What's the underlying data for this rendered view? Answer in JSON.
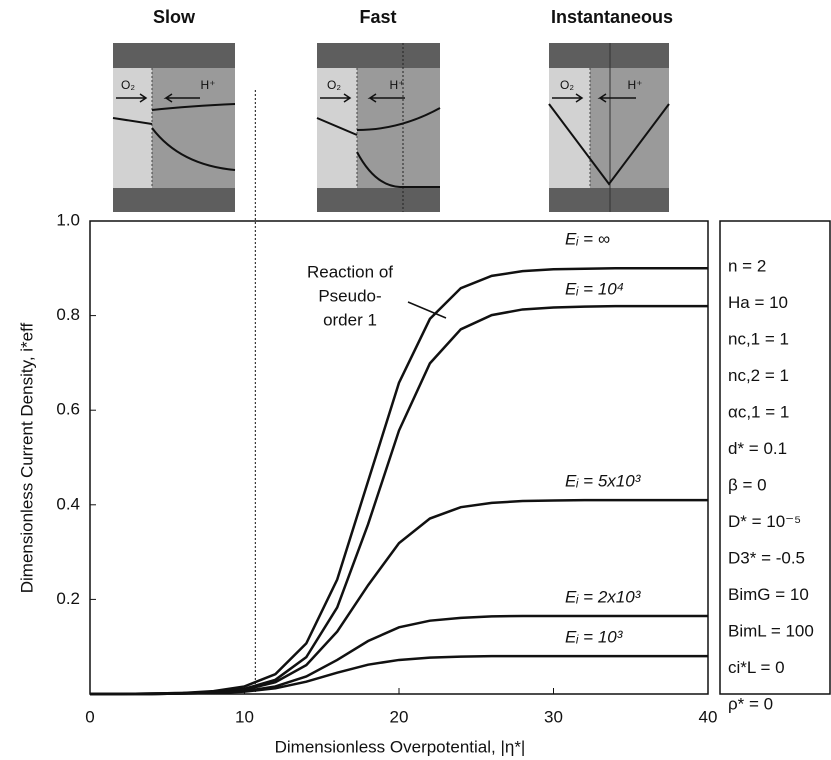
{
  "chart_data": {
    "type": "line",
    "x_label": "Dimensionless Overpotential, |η*|",
    "y_label": "Dimensionless Current Density, i*eff",
    "x": [
      0,
      2,
      4,
      6,
      8,
      10,
      12,
      14,
      16,
      18,
      20,
      22,
      24,
      26,
      28,
      30,
      32,
      34,
      36,
      38,
      40
    ],
    "series": [
      {
        "name": "Eᵢ = ∞",
        "color": "#111111",
        "values": [
          0,
          0,
          0.001,
          0.002,
          0.006,
          0.016,
          0.042,
          0.107,
          0.242,
          0.45,
          0.658,
          0.793,
          0.858,
          0.884,
          0.894,
          0.898,
          0.899,
          0.9,
          0.9,
          0.9,
          0.9
        ]
      },
      {
        "name": "Eᵢ = 10⁴",
        "color": "#111111",
        "values": [
          0,
          0,
          0.001,
          0.002,
          0.004,
          0.011,
          0.03,
          0.078,
          0.183,
          0.359,
          0.557,
          0.699,
          0.771,
          0.801,
          0.813,
          0.817,
          0.819,
          0.82,
          0.82,
          0.82,
          0.82
        ]
      },
      {
        "name": "Eᵢ = 5x10³",
        "color": "#111111",
        "values": [
          0,
          0,
          0,
          0.001,
          0.004,
          0.009,
          0.025,
          0.061,
          0.132,
          0.23,
          0.319,
          0.371,
          0.395,
          0.404,
          0.408,
          0.409,
          0.41,
          0.41,
          0.41,
          0.41,
          0.41
        ]
      },
      {
        "name": "Eᵢ = 2x10³",
        "color": "#111111",
        "values": [
          0,
          0,
          0,
          0.001,
          0.002,
          0.006,
          0.016,
          0.037,
          0.072,
          0.112,
          0.141,
          0.155,
          0.161,
          0.164,
          0.165,
          0.165,
          0.165,
          0.165,
          0.165,
          0.165,
          0.165
        ]
      },
      {
        "name": "Eᵢ = 10³",
        "color": "#111111",
        "values": [
          0,
          0,
          0,
          0.001,
          0.002,
          0.005,
          0.012,
          0.026,
          0.045,
          0.062,
          0.072,
          0.077,
          0.079,
          0.08,
          0.08,
          0.08,
          0.08,
          0.08,
          0.08,
          0.08,
          0.08
        ]
      }
    ],
    "xlim": [
      0,
      40
    ],
    "xticks": [
      0,
      10,
      20,
      30,
      40
    ],
    "ylim": [
      0,
      1.0
    ],
    "yticks": [
      0.2,
      0.4,
      0.6,
      0.8,
      {
        "value": 1.0,
        "label": "1.0"
      }
    ],
    "vline_x": 10.7,
    "annotation": [
      "Reaction of",
      "Pseudo-",
      "order 1"
    ],
    "parameters": [
      "n = 2",
      "Ha = 10",
      "nc,1 = 1",
      "nc,2 = 1",
      "αc,1 = 1",
      "d* = 0.1",
      "β = 0",
      "D* = 10⁻⁵",
      "D3* = -0.5",
      "BimG = 10",
      "BimL = 100",
      "ci*L = 0",
      "ρ* = 0"
    ]
  },
  "schematics": [
    {
      "title": "Slow",
      "labels": [
        "O₂",
        "H⁺"
      ]
    },
    {
      "title": "Fast",
      "labels": [
        "O₂",
        "H⁺"
      ]
    },
    {
      "title": "Instantaneous",
      "labels": [
        "O₂",
        "H⁺"
      ]
    }
  ]
}
